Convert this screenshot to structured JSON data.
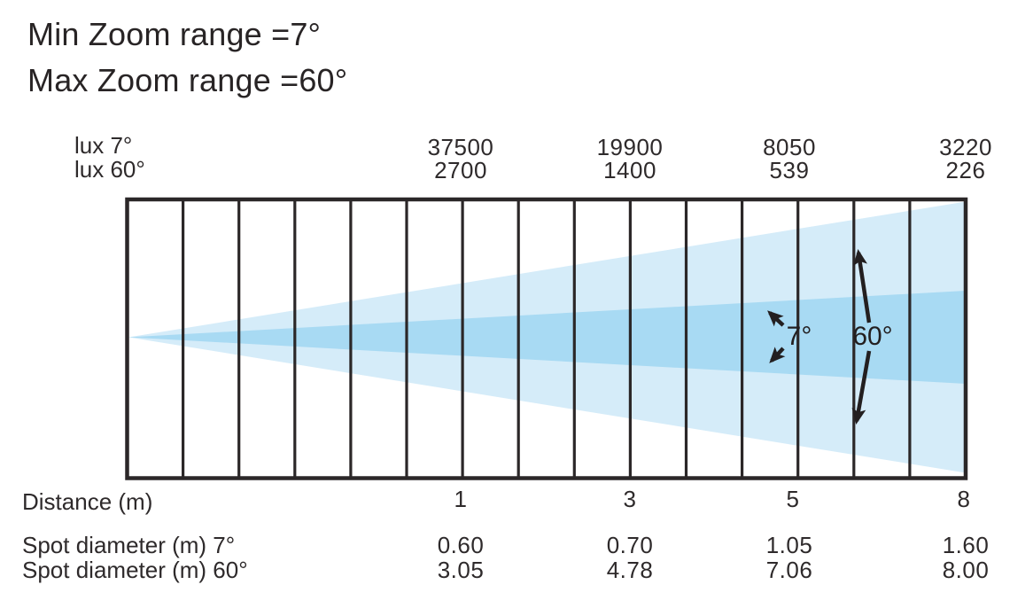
{
  "titles": {
    "line1": "Min Zoom range =7°",
    "line2": "Max Zoom range =60°"
  },
  "lux": {
    "row7": {
      "label": "lux 7°",
      "values": [
        "37500",
        "19900",
        "8050",
        "3220"
      ]
    },
    "row60": {
      "label": "lux 60°",
      "values": [
        "2700",
        "1400",
        "539",
        "226"
      ]
    }
  },
  "beam": {
    "narrow_label": "7°",
    "wide_label": "60°"
  },
  "distance": {
    "label": "Distance (m)",
    "values": [
      "1",
      "3",
      "5",
      "8"
    ]
  },
  "spot7": {
    "label": "Spot diameter (m) 7°",
    "values": [
      "0.60",
      "0.70",
      "1.05",
      "1.60"
    ]
  },
  "spot60": {
    "label": "Spot diameter (m) 60°",
    "values": [
      "3.05",
      "4.78",
      "7.06",
      "8.00"
    ]
  },
  "colors": {
    "cone_wide": "#d5ecf9",
    "cone_narrow": "#a8daf3",
    "ink": "#282425"
  },
  "chart_data": {
    "type": "table",
    "min_zoom_deg": 7,
    "max_zoom_deg": 60,
    "distances_m": [
      1,
      3,
      5,
      8
    ],
    "lux_7deg": [
      37500,
      19900,
      8050,
      3220
    ],
    "lux_60deg": [
      2700,
      1400,
      539,
      226
    ],
    "spot_diameter_m_7deg": [
      0.6,
      0.7,
      1.05,
      1.6
    ],
    "spot_diameter_m_60deg": [
      3.05,
      4.78,
      7.06,
      8.0
    ]
  }
}
